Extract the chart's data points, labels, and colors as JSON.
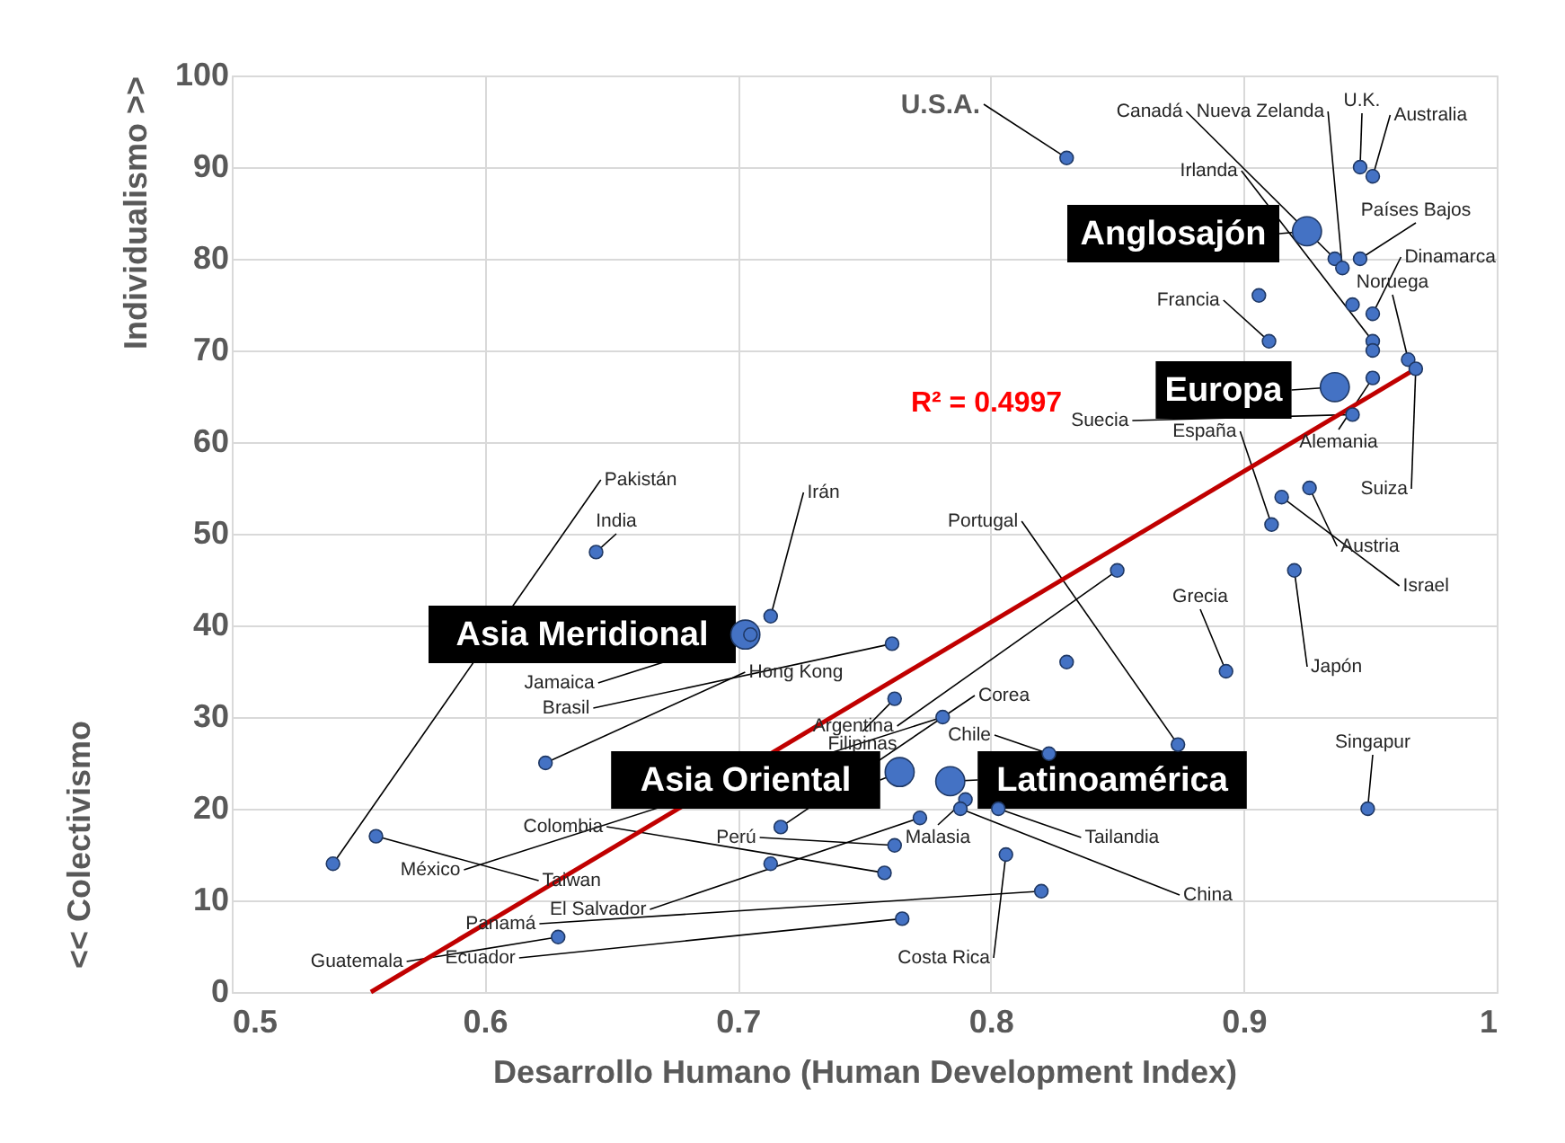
{
  "chart_data": {
    "type": "scatter",
    "xlabel": "Desarrollo Humano (Human Development Index)",
    "ylabel": "Individualismo >>",
    "xlim": [
      0.5,
      1
    ],
    "xticks": [
      0.5,
      0.6,
      0.7,
      0.8,
      0.9,
      1
    ],
    "ylim": [
      0,
      100
    ],
    "yticks": [
      0,
      10,
      20,
      30,
      40,
      50,
      60,
      70,
      80,
      90,
      100
    ],
    "grid": true,
    "marker": "circle",
    "series": [
      {
        "color": "#4472c4",
        "x": [
          0.83,
          0.936,
          0.939,
          0.946,
          0.951,
          0.951,
          0.946,
          0.951,
          0.965,
          0.91,
          0.943,
          0.911,
          0.951,
          0.968,
          0.926,
          0.915,
          0.92,
          0.893,
          0.949,
          0.874,
          0.54,
          0.644,
          0.713,
          0.705,
          0.761,
          0.624,
          0.85,
          0.762,
          0.717,
          0.823,
          0.758,
          0.781,
          0.557,
          0.762,
          0.79,
          0.803,
          0.788,
          0.772,
          0.82,
          0.765,
          0.629,
          0.806,
          0.906,
          0.943,
          0.951,
          0.83,
          0.713
        ],
        "values": [
          91,
          80,
          79,
          90,
          89,
          71,
          80,
          74,
          69,
          71,
          63,
          51,
          67,
          68,
          55,
          54,
          46,
          35,
          20,
          27,
          14,
          48,
          41,
          39,
          38,
          25,
          46,
          32,
          18,
          26,
          13,
          30,
          17,
          16,
          21,
          20,
          20,
          19,
          11,
          8,
          6,
          15,
          76,
          75,
          70,
          36,
          14
        ]
      },
      {
        "color": "#4472c4",
        "x": [
          0.925,
          0.936,
          0.703,
          0.764,
          0.784
        ],
        "values": [
          83,
          66,
          39,
          24,
          23
        ]
      },
      {
        "type": "line",
        "marker": "none",
        "color": "#c00000",
        "x": [
          0.555,
          0.968
        ],
        "values": [
          0,
          68
        ]
      }
    ],
    "annotations": [
      {
        "text": "U.S.A.",
        "x": 0.83,
        "y": 91
      },
      {
        "text": "Canadá",
        "x": 0.936,
        "y": 80
      },
      {
        "text": "Nueva Zelanda",
        "x": 0.939,
        "y": 79
      },
      {
        "text": "U.K.",
        "x": 0.946,
        "y": 90
      },
      {
        "text": "Australia",
        "x": 0.951,
        "y": 89
      },
      {
        "text": "Irlanda",
        "x": 0.951,
        "y": 71
      },
      {
        "text": "Países Bajos",
        "x": 0.946,
        "y": 80
      },
      {
        "text": "Dinamarca",
        "x": 0.951,
        "y": 74
      },
      {
        "text": "Noruega",
        "x": 0.965,
        "y": 69
      },
      {
        "text": "Francia",
        "x": 0.91,
        "y": 71
      },
      {
        "text": "Suecia",
        "x": 0.943,
        "y": 63
      },
      {
        "text": "España",
        "x": 0.911,
        "y": 51
      },
      {
        "text": "Alemania",
        "x": 0.951,
        "y": 67
      },
      {
        "text": "Suiza",
        "x": 0.968,
        "y": 68
      },
      {
        "text": "Austria",
        "x": 0.926,
        "y": 55
      },
      {
        "text": "Israel",
        "x": 0.915,
        "y": 54
      },
      {
        "text": "Japón",
        "x": 0.92,
        "y": 46
      },
      {
        "text": "Grecia",
        "x": 0.893,
        "y": 35
      },
      {
        "text": "Singapur",
        "x": 0.949,
        "y": 20
      },
      {
        "text": "Portugal",
        "x": 0.874,
        "y": 27
      },
      {
        "text": "Pakistán",
        "x": 0.54,
        "y": 14
      },
      {
        "text": "India",
        "x": 0.644,
        "y": 48
      },
      {
        "text": "Irán",
        "x": 0.713,
        "y": 41
      },
      {
        "text": "Jamaica",
        "x": 0.705,
        "y": 39
      },
      {
        "text": "Brasil",
        "x": 0.761,
        "y": 38
      },
      {
        "text": "Hong Kong",
        "x": 0.624,
        "y": 25
      },
      {
        "text": "Argentina",
        "x": 0.85,
        "y": 46
      },
      {
        "text": "Filipinas",
        "x": 0.762,
        "y": 32
      },
      {
        "text": "Corea",
        "x": 0.717,
        "y": 18
      },
      {
        "text": "Chile",
        "x": 0.823,
        "y": 26
      },
      {
        "text": "Colombia",
        "x": 0.758,
        "y": 13
      },
      {
        "text": "México",
        "x": 0.781,
        "y": 30
      },
      {
        "text": "Taiwan",
        "x": 0.557,
        "y": 17
      },
      {
        "text": "Perú",
        "x": 0.762,
        "y": 16
      },
      {
        "text": "Malasia",
        "x": 0.79,
        "y": 21
      },
      {
        "text": "Tailandia",
        "x": 0.803,
        "y": 20
      },
      {
        "text": "China",
        "x": 0.788,
        "y": 20
      },
      {
        "text": "El Salvador",
        "x": 0.772,
        "y": 19
      },
      {
        "text": "Panamá",
        "x": 0.82,
        "y": 11
      },
      {
        "text": "Ecuador",
        "x": 0.765,
        "y": 8
      },
      {
        "text": "Guatemala",
        "x": 0.629,
        "y": 6
      },
      {
        "text": "Costa Rica",
        "x": 0.806,
        "y": 15
      },
      {
        "text": "Anglosajón",
        "x": 0.925,
        "y": 83
      },
      {
        "text": "Europa",
        "x": 0.936,
        "y": 66
      },
      {
        "text": "Asia Meridional",
        "x": 0.703,
        "y": 39
      },
      {
        "text": "Asia Oriental",
        "x": 0.764,
        "y": 24
      },
      {
        "text": "Latinoamérica",
        "x": 0.784,
        "y": 23
      },
      "R² = 0.4997",
      "<< Colectivismo"
    ]
  }
}
